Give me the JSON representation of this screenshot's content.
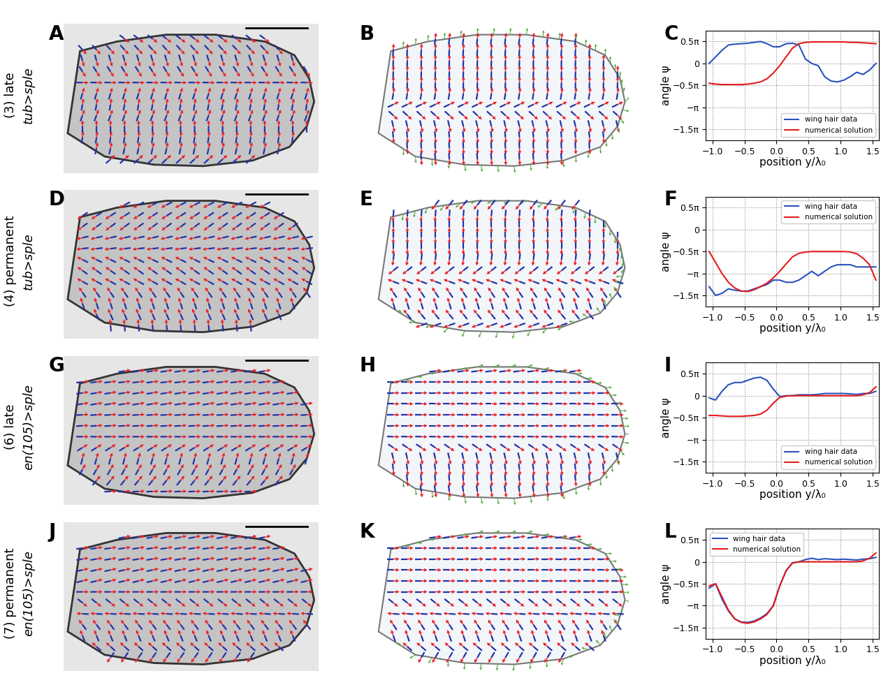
{
  "rows": [
    {
      "label": "(3) late",
      "genotype": "tub>sple",
      "letters": [
        "A",
        "B",
        "C"
      ]
    },
    {
      "label": "(4) permanent",
      "genotype": "tub>sple",
      "letters": [
        "D",
        "E",
        "F"
      ]
    },
    {
      "label": "(6) late",
      "genotype": "en(105)>sple",
      "letters": [
        "G",
        "H",
        "I"
      ]
    },
    {
      "label": "(7) permanent",
      "genotype": "en(105)>sple",
      "letters": [
        "J",
        "K",
        "L"
      ]
    }
  ],
  "chart_data": [
    {
      "type": "line",
      "xlabel": "position y/λ₀",
      "ylabel": "angle ψ",
      "grid": true,
      "legend": "lower right",
      "xlim": [
        -1.1,
        1.6
      ],
      "xticks": [
        {
          "value": -1.0,
          "label": "−1.0"
        },
        {
          "value": -0.5,
          "label": "−0.5"
        },
        0.0,
        0.5,
        1.0,
        1.5
      ],
      "ylim": [
        -1.75,
        0.75
      ],
      "yticks": [
        {
          "value": 0.5,
          "label": "0.5π"
        },
        0,
        {
          "value": -0.5,
          "label": "−0.5π"
        },
        {
          "value": -1,
          "label": "−π"
        },
        {
          "value": -1.5,
          "label": "−1.5π"
        }
      ],
      "x": [
        -1.05,
        -0.95,
        -0.85,
        -0.75,
        -0.65,
        -0.55,
        -0.45,
        -0.35,
        -0.25,
        -0.15,
        -0.05,
        0.05,
        0.15,
        0.25,
        0.35,
        0.45,
        0.55,
        0.65,
        0.75,
        0.85,
        0.95,
        1.05,
        1.15,
        1.25,
        1.35,
        1.45,
        1.55
      ],
      "series": [
        {
          "name": "wing hair data",
          "color": "#2a52be",
          "values": [
            0.0,
            0.15,
            0.3,
            0.42,
            0.44,
            0.45,
            0.46,
            0.48,
            0.5,
            0.45,
            0.38,
            0.38,
            0.45,
            0.46,
            0.42,
            0.1,
            0.0,
            -0.05,
            -0.3,
            -0.4,
            -0.42,
            -0.38,
            -0.3,
            -0.2,
            -0.25,
            -0.15,
            0.0
          ]
        },
        {
          "name": "numerical solution",
          "color": "#e41a1c",
          "values": [
            -0.45,
            -0.47,
            -0.48,
            -0.48,
            -0.48,
            -0.48,
            -0.47,
            -0.45,
            -0.42,
            -0.35,
            -0.22,
            -0.05,
            0.15,
            0.35,
            0.45,
            0.48,
            0.49,
            0.49,
            0.49,
            0.49,
            0.49,
            0.49,
            0.48,
            0.48,
            0.47,
            0.46,
            0.45
          ]
        }
      ]
    },
    {
      "type": "line",
      "xlabel": "position y/λ₀",
      "ylabel": "angle ψ",
      "grid": true,
      "legend": "upper right",
      "xlim": [
        -1.1,
        1.6
      ],
      "xticks": [
        {
          "value": -1.0,
          "label": "−1.0"
        },
        {
          "value": -0.5,
          "label": "−0.5"
        },
        0.0,
        0.5,
        1.0,
        1.5
      ],
      "ylim": [
        -1.75,
        0.75
      ],
      "yticks": [
        {
          "value": 0.5,
          "label": "0.5π"
        },
        0,
        {
          "value": -0.5,
          "label": "−0.5π"
        },
        {
          "value": -1,
          "label": "−π"
        },
        {
          "value": -1.5,
          "label": "−1.5π"
        }
      ],
      "x": [
        -1.05,
        -0.95,
        -0.85,
        -0.75,
        -0.65,
        -0.55,
        -0.45,
        -0.35,
        -0.25,
        -0.15,
        -0.05,
        0.05,
        0.15,
        0.25,
        0.35,
        0.45,
        0.55,
        0.65,
        0.75,
        0.85,
        0.95,
        1.05,
        1.15,
        1.25,
        1.35,
        1.45,
        1.55
      ],
      "series": [
        {
          "name": "wing hair data",
          "color": "#2a52be",
          "values": [
            -1.3,
            -1.5,
            -1.45,
            -1.35,
            -1.38,
            -1.4,
            -1.4,
            -1.35,
            -1.3,
            -1.25,
            -1.15,
            -1.15,
            -1.2,
            -1.2,
            -1.15,
            -1.05,
            -0.95,
            -1.05,
            -0.95,
            -0.85,
            -0.8,
            -0.8,
            -0.8,
            -0.85,
            -0.85,
            -0.85,
            -0.85
          ]
        },
        {
          "name": "numerical solution",
          "color": "#e41a1c",
          "values": [
            -0.5,
            -0.75,
            -1.0,
            -1.2,
            -1.33,
            -1.4,
            -1.41,
            -1.37,
            -1.3,
            -1.22,
            -1.1,
            -0.95,
            -0.78,
            -0.62,
            -0.54,
            -0.51,
            -0.5,
            -0.5,
            -0.5,
            -0.5,
            -0.5,
            -0.5,
            -0.51,
            -0.55,
            -0.65,
            -0.8,
            -1.15
          ]
        }
      ]
    },
    {
      "type": "line",
      "xlabel": "position y/λ₀",
      "ylabel": "angle ψ",
      "grid": true,
      "legend": "lower right",
      "xlim": [
        -1.1,
        1.6
      ],
      "xticks": [
        {
          "value": -1.0,
          "label": "−1.0"
        },
        {
          "value": -0.5,
          "label": "−0.5"
        },
        0.0,
        0.5,
        1.0,
        1.5
      ],
      "ylim": [
        -1.75,
        0.75
      ],
      "yticks": [
        {
          "value": 0.5,
          "label": "0.5π"
        },
        0,
        {
          "value": -0.5,
          "label": "−0.5π"
        },
        {
          "value": -1,
          "label": "−π"
        },
        {
          "value": -1.5,
          "label": "−1.5π"
        }
      ],
      "x": [
        -1.05,
        -0.95,
        -0.85,
        -0.75,
        -0.65,
        -0.55,
        -0.45,
        -0.35,
        -0.25,
        -0.15,
        -0.05,
        0.05,
        0.15,
        0.25,
        0.35,
        0.45,
        0.55,
        0.65,
        0.75,
        0.85,
        0.95,
        1.05,
        1.15,
        1.25,
        1.35,
        1.45,
        1.55
      ],
      "series": [
        {
          "name": "wing hair data",
          "color": "#2a52be",
          "values": [
            -0.05,
            -0.1,
            0.1,
            0.25,
            0.3,
            0.3,
            0.35,
            0.4,
            0.42,
            0.35,
            0.15,
            -0.02,
            0.0,
            0.0,
            0.02,
            0.02,
            0.02,
            0.03,
            0.05,
            0.05,
            0.05,
            0.05,
            0.04,
            0.03,
            0.05,
            0.05,
            0.1
          ]
        },
        {
          "name": "numerical solution",
          "color": "#e41a1c",
          "values": [
            -0.45,
            -0.45,
            -0.46,
            -0.47,
            -0.47,
            -0.47,
            -0.46,
            -0.45,
            -0.42,
            -0.33,
            -0.17,
            -0.04,
            -0.01,
            0.0,
            0.0,
            0.0,
            0.0,
            0.0,
            0.0,
            0.0,
            0.0,
            0.0,
            0.0,
            0.0,
            0.02,
            0.07,
            0.2
          ]
        }
      ]
    },
    {
      "type": "line",
      "xlabel": "position y/λ₀",
      "ylabel": "angle ψ",
      "grid": true,
      "legend": "upper left",
      "xlim": [
        -1.1,
        1.6
      ],
      "xticks": [
        {
          "value": -1.0,
          "label": "−1.0"
        },
        {
          "value": -0.5,
          "label": "−0.5"
        },
        0.0,
        0.5,
        1.0,
        1.5
      ],
      "ylim": [
        -1.75,
        0.75
      ],
      "yticks": [
        {
          "value": 0.5,
          "label": "0.5π"
        },
        0,
        {
          "value": -0.5,
          "label": "−0.5π"
        },
        {
          "value": -1,
          "label": "−π"
        },
        {
          "value": -1.5,
          "label": "−1.5π"
        }
      ],
      "x": [
        -1.05,
        -0.95,
        -0.85,
        -0.75,
        -0.65,
        -0.55,
        -0.45,
        -0.35,
        -0.25,
        -0.15,
        -0.05,
        0.05,
        0.15,
        0.25,
        0.35,
        0.45,
        0.55,
        0.65,
        0.75,
        0.85,
        0.95,
        1.05,
        1.15,
        1.25,
        1.35,
        1.45,
        1.55
      ],
      "series": [
        {
          "name": "wing hair data",
          "color": "#2a52be",
          "values": [
            -0.6,
            -0.5,
            -0.85,
            -1.12,
            -1.3,
            -1.37,
            -1.38,
            -1.35,
            -1.28,
            -1.18,
            -1.0,
            -0.55,
            -0.2,
            -0.02,
            0.0,
            0.05,
            0.08,
            0.05,
            0.07,
            0.06,
            0.05,
            0.06,
            0.05,
            0.04,
            0.06,
            0.07,
            0.1
          ]
        },
        {
          "name": "numerical solution",
          "color": "#e41a1c",
          "values": [
            -0.55,
            -0.5,
            -0.8,
            -1.1,
            -1.3,
            -1.38,
            -1.4,
            -1.37,
            -1.3,
            -1.2,
            -1.0,
            -0.55,
            -0.2,
            -0.03,
            0.0,
            0.0,
            0.0,
            0.0,
            0.0,
            0.0,
            0.0,
            0.0,
            0.0,
            0.0,
            0.02,
            0.08,
            0.2
          ]
        }
      ]
    }
  ]
}
